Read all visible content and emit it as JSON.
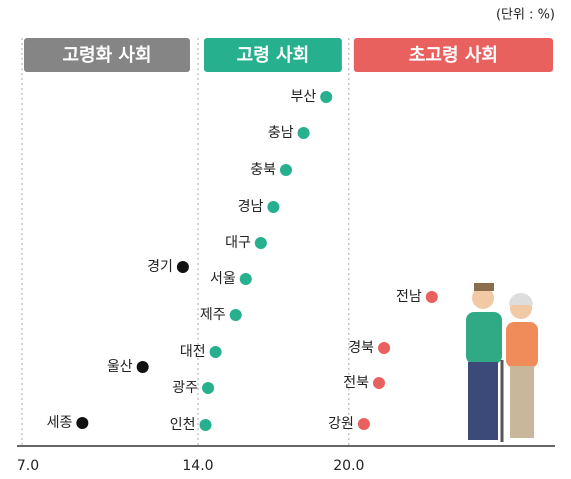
{
  "chart_data": {
    "type": "dot",
    "unit_note": "(단위 : %)",
    "xlim": [
      7.0,
      28.2
    ],
    "xticks": [
      {
        "value": 7,
        "label": "7.0"
      },
      {
        "value": 14,
        "label": "14.0"
      },
      {
        "value": 20,
        "label": "20.0"
      }
    ],
    "series": [
      {
        "name": "고령화 사회",
        "color": "#111111",
        "header_color": "#858585",
        "categories": [
          "경기",
          "울산",
          "세종"
        ],
        "values": [
          13.4,
          11.8,
          9.4
        ]
      },
      {
        "name": "고령 사회",
        "color": "#26b08e",
        "header_color": "#26b08e",
        "categories": [
          "부산",
          "충남",
          "충북",
          "경남",
          "대구",
          "서울",
          "제주",
          "대전",
          "광주",
          "인천"
        ],
        "values": [
          19.1,
          18.2,
          17.5,
          17.0,
          16.5,
          15.9,
          15.5,
          14.7,
          14.4,
          14.3
        ]
      },
      {
        "name": "초고령 사회",
        "color": "#e8615e",
        "header_color": "#e8615e",
        "categories": [
          "전남",
          "경북",
          "전북",
          "강원"
        ],
        "values": [
          23.3,
          21.4,
          21.2,
          20.6
        ]
      }
    ]
  }
}
